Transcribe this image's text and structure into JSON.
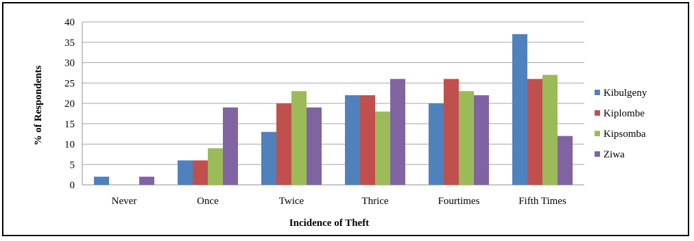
{
  "chart_data": {
    "type": "bar",
    "title": "",
    "xlabel": "Incidence of Theft",
    "ylabel": "% of Respondents",
    "ylim": [
      0,
      40
    ],
    "yticks": [
      "0",
      "5",
      "10",
      "15",
      "20",
      "25",
      "30",
      "35",
      "40"
    ],
    "grid": true,
    "legend_position": "right",
    "categories": [
      "Never",
      "Once",
      "Twice",
      "Thrice",
      "Fourtimes",
      "Fifth Times"
    ],
    "series": [
      {
        "name": "Kibulgeny",
        "color": "#4f81bd",
        "values": [
          2,
          6,
          13,
          22,
          20,
          37
        ]
      },
      {
        "name": "Kiplombe",
        "color": "#c0504d",
        "values": [
          0,
          6,
          20,
          22,
          26,
          26
        ]
      },
      {
        "name": "Kipsomba",
        "color": "#9bbb59",
        "values": [
          0,
          9,
          23,
          18,
          23,
          27
        ]
      },
      {
        "name": "Ziwa",
        "color": "#8064a2",
        "values": [
          2,
          19,
          19,
          26,
          22,
          12
        ]
      }
    ]
  }
}
